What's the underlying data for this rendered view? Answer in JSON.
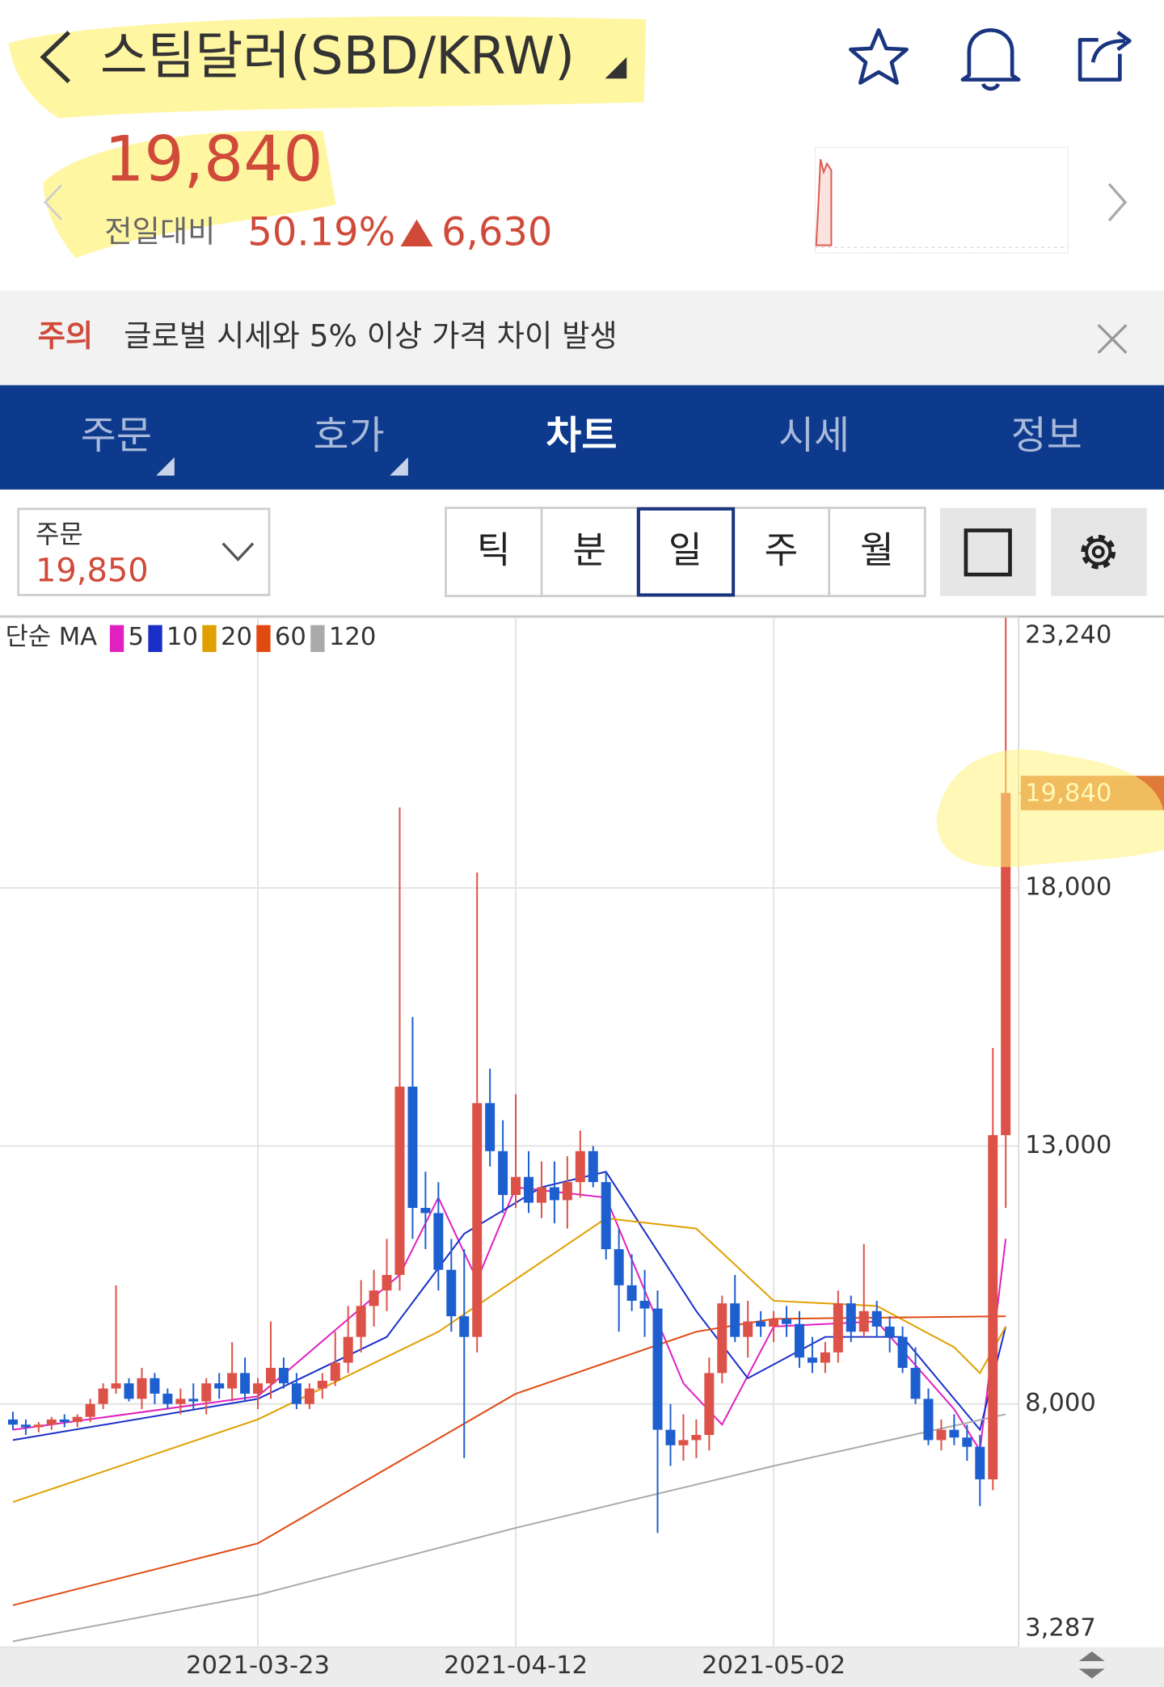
{
  "header": {
    "title": "스팀달러(SBD/KRW)"
  },
  "quote": {
    "price": "19,840",
    "change_label": "전일대비",
    "change_rate": "50.19%",
    "change_amount": "6,630"
  },
  "notice": {
    "label": "주의",
    "text": "글로벌 시세와 5% 이상 가격 차이 발생"
  },
  "tabs": {
    "items": [
      "주문",
      "호가",
      "차트",
      "시세",
      "정보"
    ],
    "active": 2
  },
  "order": {
    "label": "주문",
    "price": "19,850"
  },
  "periods": {
    "items": [
      "틱",
      "분",
      "일",
      "주",
      "월"
    ],
    "active": 2
  },
  "chart_data": {
    "type": "candlestick",
    "legend_title": "단순 MA",
    "up_color": "#dc5248",
    "down_color": "#1e5fcf",
    "grid": true,
    "xlim": [
      "2021-03-03",
      "2021-05-21"
    ],
    "xticks": [
      "2021-03-23",
      "2021-04-12",
      "2021-05-02"
    ],
    "ylim": [
      3287,
      23240
    ],
    "yticks": [
      {
        "value": 23240,
        "label": "23,240"
      },
      {
        "value": 18000,
        "label": "18,000"
      },
      {
        "value": 13000,
        "label": "13,000"
      },
      {
        "value": 8000,
        "label": "8,000"
      },
      {
        "value": 3287,
        "label": "3,287"
      }
    ],
    "last_price": {
      "value": 19840,
      "label": "19,840"
    },
    "x": [
      "2021-03-04",
      "2021-03-05",
      "2021-03-06",
      "2021-03-07",
      "2021-03-08",
      "2021-03-09",
      "2021-03-10",
      "2021-03-11",
      "2021-03-12",
      "2021-03-13",
      "2021-03-14",
      "2021-03-15",
      "2021-03-16",
      "2021-03-17",
      "2021-03-18",
      "2021-03-19",
      "2021-03-20",
      "2021-03-21",
      "2021-03-22",
      "2021-03-23",
      "2021-03-24",
      "2021-03-25",
      "2021-03-26",
      "2021-03-27",
      "2021-03-28",
      "2021-03-29",
      "2021-03-30",
      "2021-03-31",
      "2021-04-01",
      "2021-04-02",
      "2021-04-03",
      "2021-04-04",
      "2021-04-05",
      "2021-04-06",
      "2021-04-07",
      "2021-04-08",
      "2021-04-09",
      "2021-04-10",
      "2021-04-11",
      "2021-04-12",
      "2021-04-13",
      "2021-04-14",
      "2021-04-15",
      "2021-04-16",
      "2021-04-17",
      "2021-04-18",
      "2021-04-19",
      "2021-04-20",
      "2021-04-21",
      "2021-04-22",
      "2021-04-23",
      "2021-04-24",
      "2021-04-25",
      "2021-04-26",
      "2021-04-27",
      "2021-04-28",
      "2021-04-29",
      "2021-04-30",
      "2021-05-01",
      "2021-05-02",
      "2021-05-03",
      "2021-05-04",
      "2021-05-05",
      "2021-05-06",
      "2021-05-07",
      "2021-05-08",
      "2021-05-09",
      "2021-05-10",
      "2021-05-11",
      "2021-05-12",
      "2021-05-13",
      "2021-05-14",
      "2021-05-15",
      "2021-05-16",
      "2021-05-17",
      "2021-05-18",
      "2021-05-19",
      "2021-05-20"
    ],
    "open": [
      7700,
      7600,
      7550,
      7600,
      7700,
      7650,
      7750,
      8000,
      8300,
      8400,
      8100,
      8500,
      8200,
      8000,
      8100,
      8050,
      8400,
      8300,
      8600,
      8200,
      8400,
      8700,
      8400,
      8000,
      8300,
      8450,
      8800,
      9300,
      9900,
      10200,
      10500,
      14150,
      11800,
      11700,
      10600,
      9700,
      9300,
      13830,
      12900,
      12050,
      12400,
      11900,
      12200,
      11950,
      12300,
      12900,
      12300,
      11000,
      10300,
      10000,
      9850,
      7500,
      7200,
      7300,
      7400,
      8600,
      9950,
      9300,
      9600,
      9500,
      9650,
      9550,
      8900,
      8800,
      9000,
      9950,
      9400,
      9800,
      9500,
      9300,
      8700,
      8100,
      7300,
      7500,
      7350,
      7170,
      6540,
      13210
    ],
    "high": [
      7850,
      7700,
      7650,
      7750,
      7800,
      7800,
      8100,
      8400,
      10300,
      8500,
      8700,
      8600,
      8300,
      8300,
      8400,
      8500,
      8600,
      9200,
      8900,
      8500,
      9600,
      8900,
      8600,
      8400,
      8600,
      9400,
      9900,
      10400,
      10600,
      11200,
      19560,
      15500,
      12500,
      12300,
      11200,
      11000,
      18300,
      14500,
      13500,
      14000,
      12900,
      12700,
      12700,
      12800,
      13300,
      13000,
      12500,
      11400,
      10900,
      10600,
      10200,
      8000,
      7800,
      7700,
      8900,
      10100,
      10500,
      10000,
      9800,
      9800,
      9900,
      9800,
      9300,
      9200,
      10200,
      10100,
      11100,
      10000,
      9700,
      9500,
      9100,
      8300,
      7700,
      7800,
      7600,
      7400,
      14900,
      23240
    ],
    "low": [
      7500,
      7400,
      7450,
      7500,
      7550,
      7550,
      7650,
      7900,
      8200,
      8050,
      7900,
      8000,
      7900,
      7800,
      7900,
      7800,
      8100,
      8050,
      8050,
      7900,
      8100,
      8300,
      7900,
      7900,
      8100,
      8350,
      8600,
      9000,
      9500,
      9800,
      10200,
      11200,
      11000,
      10200,
      9400,
      6950,
      9000,
      12600,
      11700,
      11800,
      11700,
      11600,
      11500,
      11400,
      12000,
      12200,
      10800,
      9400,
      9800,
      9300,
      5500,
      6800,
      6900,
      6950,
      7100,
      8400,
      9200,
      8900,
      9300,
      9200,
      9300,
      8700,
      8600,
      8600,
      8800,
      9200,
      9300,
      9300,
      9000,
      8600,
      8000,
      7200,
      7100,
      7200,
      6900,
      6020,
      6330,
      11800
    ],
    "close": [
      7600,
      7550,
      7600,
      7700,
      7650,
      7750,
      8000,
      8300,
      8400,
      8100,
      8500,
      8200,
      8000,
      8100,
      8050,
      8400,
      8300,
      8600,
      8200,
      8400,
      8700,
      8400,
      8000,
      8300,
      8450,
      8800,
      9300,
      9900,
      10200,
      10500,
      14150,
      11800,
      11700,
      10600,
      9700,
      9300,
      13830,
      12900,
      12050,
      12400,
      11900,
      12200,
      11950,
      12300,
      12900,
      12300,
      11000,
      10300,
      10000,
      9850,
      7500,
      7200,
      7300,
      7400,
      8600,
      9950,
      9300,
      9600,
      9500,
      9650,
      9550,
      8900,
      8800,
      9000,
      9950,
      9400,
      9800,
      9500,
      9300,
      8700,
      8100,
      7300,
      7500,
      7350,
      7170,
      6540,
      13210,
      19840
    ],
    "series": [
      {
        "name": "5",
        "color": "#e020c0",
        "x": [
          "2021-03-04",
          "2021-03-23",
          "2021-04-03",
          "2021-04-06",
          "2021-04-09",
          "2021-04-12",
          "2021-04-19",
          "2021-04-25",
          "2021-04-28",
          "2021-05-02",
          "2021-05-10",
          "2021-05-16",
          "2021-05-18",
          "2021-05-20"
        ],
        "values": [
          7500,
          8150,
          10500,
          12000,
          10400,
          12200,
          12000,
          8400,
          7600,
          9500,
          9600,
          7900,
          7100,
          11200
        ]
      },
      {
        "name": "10",
        "color": "#1a2fc8",
        "x": [
          "2021-03-04",
          "2021-03-23",
          "2021-04-02",
          "2021-04-08",
          "2021-04-14",
          "2021-04-19",
          "2021-04-26",
          "2021-04-30",
          "2021-05-06",
          "2021-05-12",
          "2021-05-18",
          "2021-05-20"
        ],
        "values": [
          7300,
          8100,
          9300,
          11300,
          12200,
          12500,
          9800,
          8500,
          9300,
          9300,
          7500,
          9500
        ]
      },
      {
        "name": "20",
        "color": "#e0a000",
        "x": [
          "2021-03-04",
          "2021-03-23",
          "2021-04-06",
          "2021-04-19",
          "2021-04-26",
          "2021-05-02",
          "2021-05-10",
          "2021-05-16",
          "2021-05-18",
          "2021-05-20"
        ],
        "values": [
          6100,
          7700,
          9400,
          11600,
          11400,
          10000,
          9900,
          9100,
          8600,
          9500
        ]
      },
      {
        "name": "60",
        "color": "#e04a10",
        "x": [
          "2021-03-04",
          "2021-03-23",
          "2021-04-12",
          "2021-04-26",
          "2021-05-02",
          "2021-05-20"
        ],
        "values": [
          4100,
          5300,
          8200,
          9400,
          9650,
          9700
        ]
      },
      {
        "name": "120",
        "color": "#aaaaaa",
        "x": [
          "2021-03-04",
          "2021-03-23",
          "2021-04-12",
          "2021-05-02",
          "2021-05-20"
        ],
        "values": [
          3400,
          4300,
          5600,
          6800,
          7800
        ]
      }
    ]
  }
}
